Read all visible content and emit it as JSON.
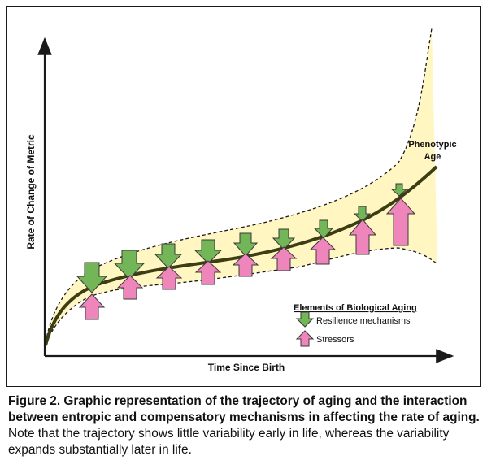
{
  "diagram": {
    "y_axis_label": "Rate of Change of Metric",
    "x_axis_label": "Time Since Birth",
    "curve_label_line1": "Phenotypic",
    "curve_label_line2": "Age",
    "legend": {
      "title": "Elements of Biological Aging",
      "items": [
        {
          "label": "Resilience mechanisms",
          "icon": "down-arrow-icon"
        },
        {
          "label": "Stressors",
          "icon": "up-arrow-icon"
        }
      ]
    },
    "colors": {
      "band_fill": "#fff6c2",
      "curve": "#3d3d14",
      "resilience_fill": "#72b657",
      "stressor_fill": "#ee86bc"
    }
  },
  "caption": {
    "bold": "Figure 2. Graphic representation of the trajectory of aging and the interaction between entropic and compensatory mechanisms in affecting the rate of aging.",
    "normal": " Note that the trajectory shows little variability early in life, whereas the variability expands substantially later in life."
  }
}
